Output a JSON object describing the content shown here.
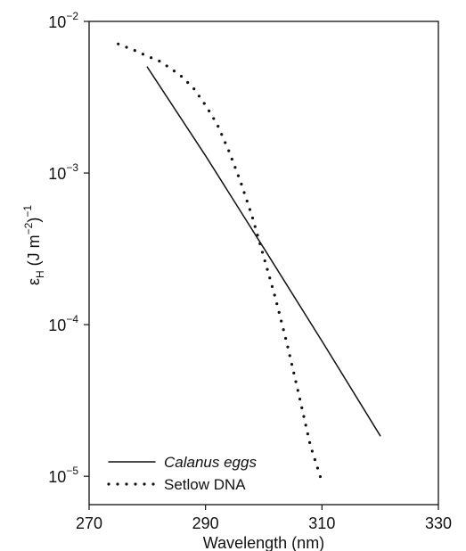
{
  "chart_data": {
    "type": "line",
    "xlabel": "Wavelength (nm)",
    "ylabel": {
      "symbol": "ε",
      "subscript": "H",
      "unit_open": " (J m",
      "unit_exp": "−2",
      "unit_close": ")",
      "outer_exp": "−1"
    },
    "xlim": [
      270,
      330
    ],
    "ylim": [
      6.5e-06,
      0.01
    ],
    "yscale": "log",
    "x_ticks": [
      270,
      290,
      310,
      330
    ],
    "y_ticks": [
      {
        "value": 0.01,
        "base": "10",
        "exp": "−2"
      },
      {
        "value": 0.001,
        "base": "10",
        "exp": "−3"
      },
      {
        "value": 0.0001,
        "base": "10",
        "exp": "−4"
      },
      {
        "value": 1e-05,
        "base": "10",
        "exp": "−5"
      }
    ],
    "grid": false,
    "legend_position": "bottom-left",
    "series": [
      {
        "name": "Calanus eggs",
        "style": "solid",
        "italic": true,
        "x": [
          280,
          290,
          300,
          310,
          320
        ],
        "y": [
          0.005,
          0.0013,
          0.00032,
          7.8e-05,
          1.85e-05
        ]
      },
      {
        "name": "Setlow DNA",
        "style": "dotted",
        "italic": false,
        "x": [
          275,
          278,
          280,
          282,
          284,
          286,
          288,
          290,
          292,
          294,
          296,
          298,
          300,
          302,
          304,
          306,
          308,
          310
        ],
        "y": [
          0.0071,
          0.0064,
          0.0059,
          0.0055,
          0.0049,
          0.0043,
          0.0036,
          0.0028,
          0.0021,
          0.0014,
          0.00088,
          0.00052,
          0.00028,
          0.00015,
          7.5e-05,
          3.5e-05,
          1.6e-05,
          9.2e-06
        ]
      }
    ]
  }
}
